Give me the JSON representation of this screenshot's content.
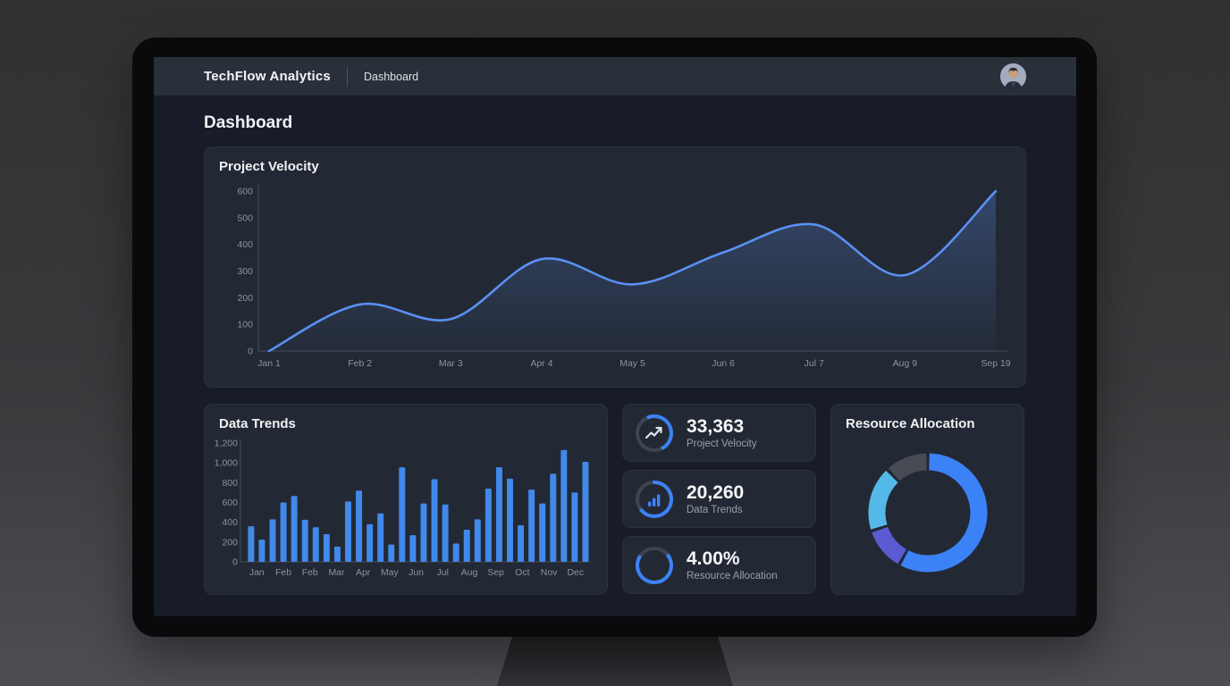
{
  "navbar": {
    "brand": "TechFlow Analytics",
    "nav_item": "Dashboard",
    "avatar_name": "user-avatar"
  },
  "page": {
    "title": "Dashboard"
  },
  "colors": {
    "accent_blue": "#3b82f6",
    "line_blue": "#5a90f2",
    "bar_blue": "#4189ea",
    "ring_gray": "#3e4450",
    "screen_bg": "#171c28",
    "card_bg": "#232934",
    "navbar_bg": "#2a303a",
    "tick_text": "#8d949f"
  },
  "chart_data": [
    {
      "id": "project_velocity",
      "type": "area",
      "title": "Project Velocity",
      "x": [
        "Jan 1",
        "Feb 2",
        "Mar 3",
        "Apr 4",
        "May 5",
        "Jun 6",
        "Jul 7",
        "Aug 9",
        "Sep 19"
      ],
      "values": [
        0,
        175,
        120,
        345,
        250,
        370,
        475,
        285,
        600
      ],
      "ylim": [
        0,
        600
      ],
      "yticks": [
        0,
        100,
        200,
        300,
        400,
        500,
        600
      ],
      "grid": false,
      "legend": false,
      "line_color": "#5a90f2",
      "fill_top": "rgba(84,128,210,0.34)",
      "fill_bottom": "rgba(84,128,210,0.03)"
    },
    {
      "id": "data_trends",
      "type": "bar",
      "title": "Data Trends",
      "categories": [
        "Jan",
        "Feb",
        "Feb",
        "Mar",
        "Apr",
        "May",
        "Jun",
        "Jul",
        "Aug",
        "Sep",
        "Oct",
        "Nov",
        "Dec"
      ],
      "values": [
        360,
        225,
        430,
        600,
        665,
        425,
        350,
        280,
        155,
        610,
        720,
        380,
        490,
        175,
        955,
        270,
        590,
        835,
        580,
        185,
        325,
        430,
        740,
        955,
        840,
        370,
        730,
        590,
        890,
        1130,
        700,
        1010
      ],
      "ylim": [
        0,
        1200
      ],
      "yticks": [
        0,
        200,
        400,
        600,
        800,
        1000,
        1200
      ],
      "grid": false,
      "legend": false,
      "bar_color": "#4189ea"
    },
    {
      "id": "resource_allocation",
      "type": "donut",
      "title": "Resource Allocation",
      "segments": [
        {
          "value": 58,
          "color": "#3b82f6"
        },
        {
          "value": 12,
          "color": "#5a5bd2"
        },
        {
          "value": 18,
          "color": "#54b9e9"
        },
        {
          "value": 12,
          "color": "#464b54"
        }
      ]
    }
  ],
  "stats": [
    {
      "value": "33,363",
      "label": "Project Velocity",
      "icon": "trend-up-icon",
      "arc_start": -25,
      "arc_end": 155
    },
    {
      "value": "20,260",
      "label": "Data Trends",
      "icon": "bar-chart-icon",
      "arc_start": -5,
      "arc_end": 235
    },
    {
      "value": "4.00%",
      "label": "Resource Allocation",
      "icon": "donut-icon",
      "arc_start": 50,
      "arc_end": 305
    }
  ]
}
